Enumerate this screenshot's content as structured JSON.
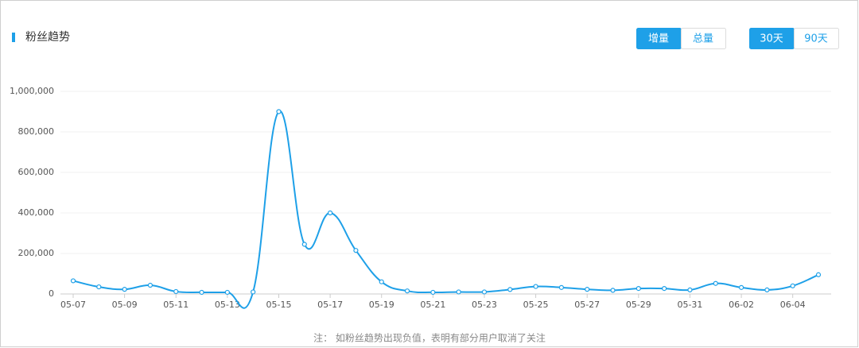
{
  "controls": [
    [
      {
        "label": "增量",
        "active": true
      },
      {
        "label": "总量",
        "active": false
      }
    ],
    [
      {
        "label": "30天",
        "active": true
      },
      {
        "label": "90天",
        "active": false
      }
    ]
  ],
  "chart_data": {
    "type": "line",
    "title": "粉丝趋势",
    "note": "注： 如粉丝趋势出现负值，表明有部分用户取消了关注",
    "categories": [
      "05-07",
      null,
      "05-09",
      null,
      "05-11",
      null,
      "05-13",
      null,
      "05-15",
      null,
      "05-17",
      null,
      "05-19",
      null,
      "05-21",
      null,
      "05-23",
      null,
      "05-25",
      null,
      "05-27",
      null,
      "05-29",
      null,
      "05-31",
      null,
      "06-02",
      null,
      "06-04",
      null
    ],
    "series": [
      {
        "name": "粉丝",
        "color": "#1ea0e8",
        "values": [
          65000,
          35000,
          23000,
          43000,
          12000,
          8000,
          8000,
          10000,
          900000,
          245000,
          400000,
          215000,
          60000,
          15000,
          8000,
          10000,
          10000,
          22000,
          37000,
          32000,
          23000,
          18000,
          27000,
          27000,
          20000,
          52000,
          32000,
          20000,
          40000,
          95000
        ]
      }
    ],
    "ylim": [
      0,
      1000000
    ],
    "yticks": [
      0,
      {
        "value": 200000,
        "label": "200,000"
      },
      {
        "value": 400000,
        "label": "400,000"
      },
      {
        "value": 600000,
        "label": "600,000"
      },
      {
        "value": 800000,
        "label": "800,000"
      },
      {
        "value": 1000000,
        "label": "1,000,000"
      }
    ],
    "grid": true
  }
}
